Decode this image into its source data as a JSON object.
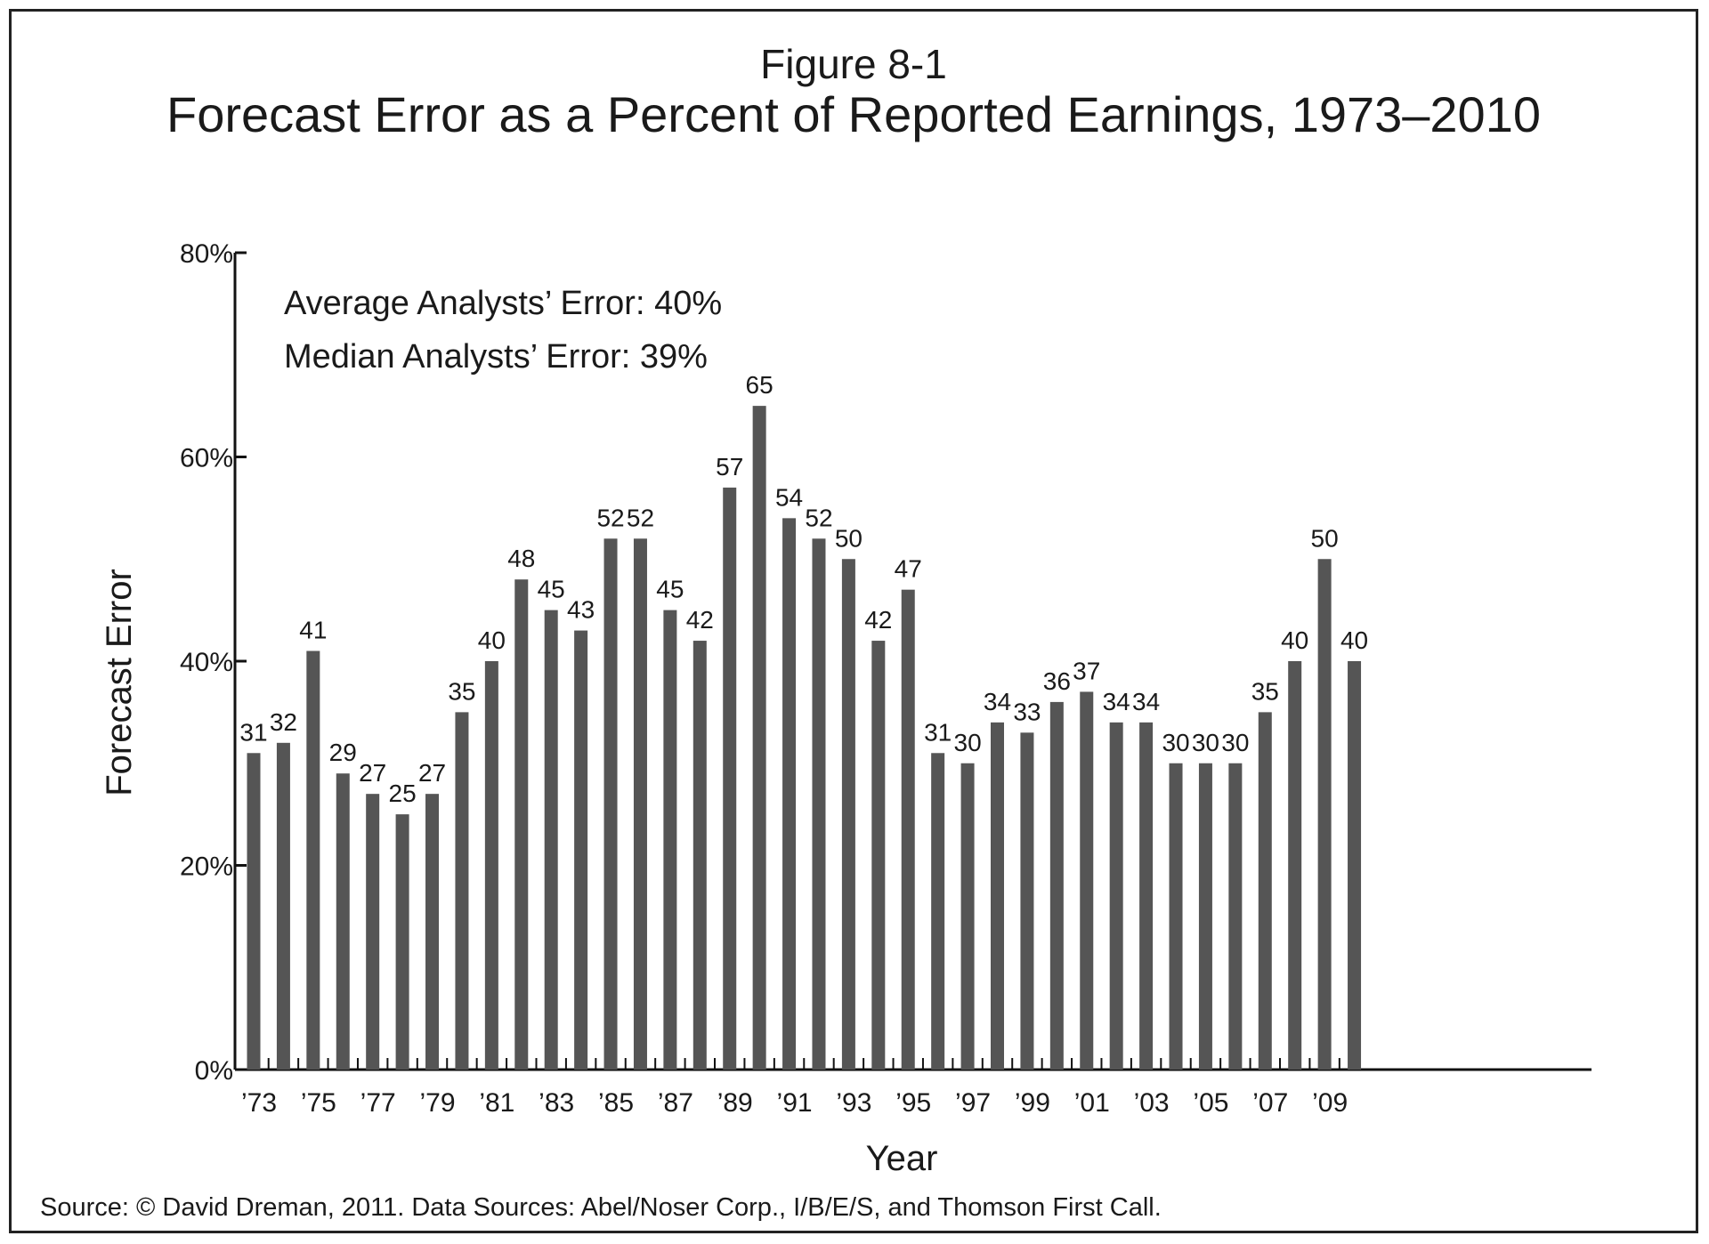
{
  "chart_data": {
    "type": "bar",
    "figure_label": "Figure 8-1",
    "title": "Forecast Error as a Percent of Reported Earnings, 1973–2010",
    "xlabel": "Year",
    "ylabel": "Forecast Error",
    "ylim": [
      0,
      80
    ],
    "yticks": [
      "0%",
      "20%",
      "40%",
      "60%",
      "80%"
    ],
    "ytick_values": [
      0,
      20,
      40,
      60,
      80
    ],
    "xtick_labels": [
      "’73",
      "’75",
      "’77",
      "’79",
      "’81",
      "’83",
      "’85",
      "’87",
      "’89",
      "’91",
      "’93",
      "’95",
      "’97",
      "’99",
      "’01",
      "’03",
      "’05",
      "’07",
      "’09"
    ],
    "categories": [
      "1973",
      "1974",
      "1975",
      "1976",
      "1977",
      "1978",
      "1979",
      "1980",
      "1981",
      "1982",
      "1983",
      "1984",
      "1985",
      "1986",
      "1987",
      "1988",
      "1989",
      "1990",
      "1991",
      "1992",
      "1993",
      "1994",
      "1995",
      "1996",
      "1997",
      "1998",
      "1999",
      "2000",
      "2001",
      "2002",
      "2003",
      "2004",
      "2005",
      "2006",
      "2007",
      "2008",
      "2009",
      "2010"
    ],
    "values": [
      31,
      32,
      41,
      29,
      27,
      25,
      27,
      35,
      40,
      48,
      45,
      43,
      52,
      52,
      45,
      42,
      57,
      65,
      54,
      52,
      50,
      42,
      47,
      31,
      30,
      34,
      33,
      36,
      37,
      34,
      34,
      30,
      30,
      30,
      35,
      40,
      50,
      40
    ],
    "annotations": [
      "Average Analysts’ Error: 40%",
      "Median Analysts’ Error: 39%"
    ],
    "bar_color": "#555555",
    "grid": false
  },
  "source_note": "Source: © David Dreman, 2011. Data Sources: Abel/Noser Corp., I/B/E/S, and Thomson First Call."
}
